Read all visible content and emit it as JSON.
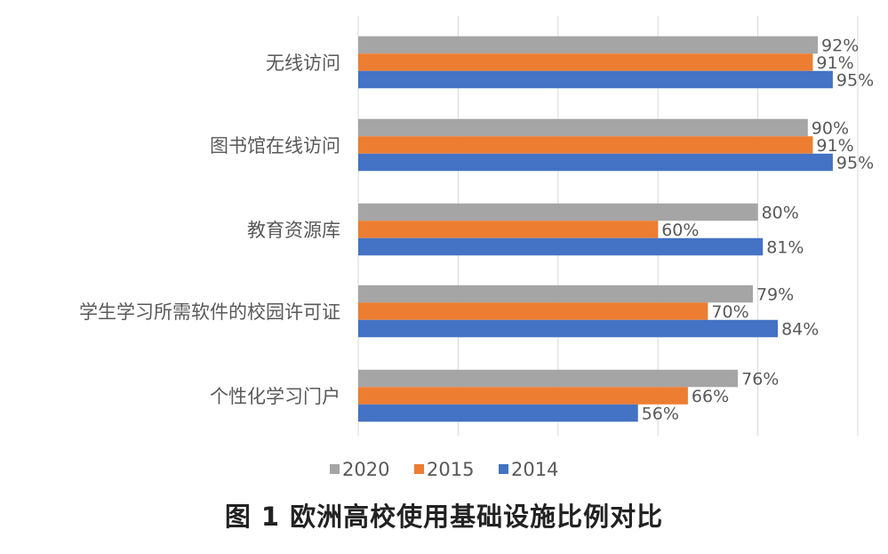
{
  "chart_data": {
    "type": "bar",
    "orientation": "horizontal",
    "categories": [
      "无线访问",
      "图书馆在线访问",
      "教育资源库",
      "学生学习所需软件的校园许可证",
      "个性化学习门户"
    ],
    "series": [
      {
        "name": "2020",
        "color": "#a5a5a5",
        "values": [
          92,
          90,
          80,
          79,
          76
        ],
        "labels": [
          "92%",
          "90%",
          "80%",
          "79%",
          "76%"
        ]
      },
      {
        "name": "2015",
        "color": "#ed7d31",
        "values": [
          91,
          91,
          60,
          70,
          66
        ],
        "labels": [
          "91%",
          "91%",
          "60%",
          "70%",
          "66%"
        ]
      },
      {
        "name": "2014",
        "color": "#4472c4",
        "values": [
          95,
          95,
          81,
          84,
          56
        ],
        "labels": [
          "95%",
          "95%",
          "81%",
          "84%",
          "56%"
        ]
      }
    ],
    "xlim": [
      0,
      100
    ],
    "x_ticks_shown": false,
    "grid": true,
    "legend_position": "bottom",
    "caption": "图 1 欧洲高校使用基础设施比例对比"
  }
}
